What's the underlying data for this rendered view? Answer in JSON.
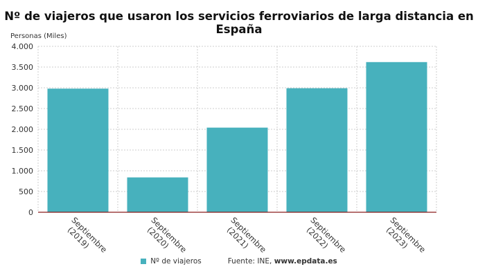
{
  "chart_data": {
    "type": "bar",
    "title": "Nº de viajeros que usaron los servicios ferroviarios de larga distancia en España",
    "ylabel": "Personas (Miles)",
    "xlabel": "",
    "categories": [
      [
        "Septiembre",
        "(2019)"
      ],
      [
        "Septiembre",
        "(2020)"
      ],
      [
        "Septiembre",
        "(2021)"
      ],
      [
        "Septiembre",
        "(2022)"
      ],
      [
        "Septiembre",
        "(2023)"
      ]
    ],
    "series": [
      {
        "name": "Nº de viajeros",
        "values": [
          2980,
          840,
          2040,
          2990,
          3620
        ]
      }
    ],
    "ylim": [
      0,
      4000
    ],
    "yticks": [
      0,
      500,
      1000,
      1500,
      2000,
      2500,
      3000,
      3500,
      4000
    ],
    "ytick_labels": [
      "0",
      "500",
      "1.000",
      "1.500",
      "2.000",
      "2.500",
      "3.000",
      "3.500",
      "4.000"
    ],
    "grid": true,
    "legend_position": "bottom-center",
    "colors": {
      "bar": "#47b1bd",
      "axis": "#8b1a1a",
      "grid": "#cccccc"
    }
  },
  "source": {
    "label": "Fuente: INE,",
    "link": "www.epdata.es"
  }
}
